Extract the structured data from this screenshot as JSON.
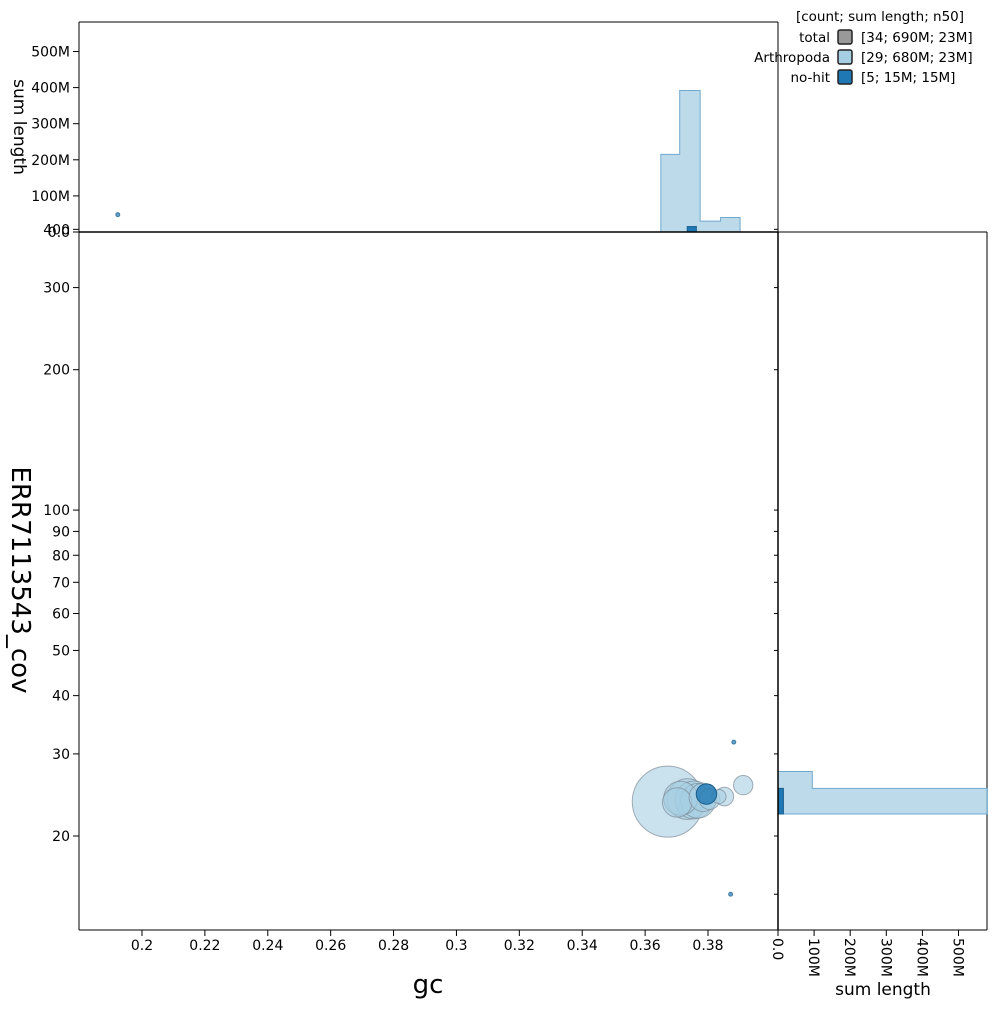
{
  "colors": {
    "total": "#999999",
    "arthropoda": "#a6cee3",
    "arthropoda_stroke": "#6fa8cc",
    "nohit": "#1f78b4",
    "nohit_stroke": "#1a5e8a"
  },
  "chart_data": {
    "type": "scatter",
    "title": "",
    "xlabel": "gc",
    "ylabel": "ERR7113543_cov",
    "x_ticks": [
      "0.2",
      "0.22",
      "0.24",
      "0.26",
      "0.28",
      "0.3",
      "0.32",
      "0.34",
      "0.36",
      "0.38"
    ],
    "y_ticks": [
      "20",
      "30",
      "40",
      "50",
      "60",
      "70",
      "80",
      "90",
      "100",
      "200",
      "300",
      "400"
    ],
    "y_scale": "log",
    "xlim": [
      0.18,
      0.402
    ],
    "ylim": [
      14,
      480
    ],
    "top_hist": {
      "ylabel": "sum length",
      "y_ticks": [
        "0.0",
        "100M",
        "200M",
        "300M",
        "400M",
        "500M"
      ],
      "ylim_M": [
        0,
        560
      ]
    },
    "right_hist": {
      "xlabel": "sum length",
      "x_ticks": [
        "0.0",
        "100M",
        "200M",
        "300M",
        "400M",
        "500M"
      ],
      "xlim_M": [
        0,
        560
      ]
    },
    "legend": {
      "header": "[count; sum length; n50]",
      "placement": "top-right",
      "entries": [
        {
          "key": "total",
          "label": "total",
          "stats": "[34; 690M; 23M]"
        },
        {
          "key": "arthropoda",
          "label": "Arthropoda",
          "stats": "[29; 680M; 23M]"
        },
        {
          "key": "nohit",
          "label": "no-hit",
          "stats": "[5; 15M; 15M]"
        }
      ]
    },
    "series": [
      {
        "name": "Arthropoda",
        "key": "arthropoda",
        "points": [
          {
            "gc": 0.3672,
            "cov": 23.7,
            "len_M": 175
          },
          {
            "gc": 0.3713,
            "cov": 24.1,
            "len_M": 40
          },
          {
            "gc": 0.3735,
            "cov": 24.0,
            "len_M": 58
          },
          {
            "gc": 0.3755,
            "cov": 23.9,
            "len_M": 50
          },
          {
            "gc": 0.3702,
            "cov": 23.6,
            "len_M": 30
          },
          {
            "gc": 0.3768,
            "cov": 23.8,
            "len_M": 42
          },
          {
            "gc": 0.3785,
            "cov": 24.2,
            "len_M": 28
          },
          {
            "gc": 0.3805,
            "cov": 24.0,
            "len_M": 15
          },
          {
            "gc": 0.3852,
            "cov": 24.3,
            "len_M": 12
          },
          {
            "gc": 0.3835,
            "cov": 24.3,
            "len_M": 7
          },
          {
            "gc": 0.3912,
            "cov": 25.7,
            "len_M": 13
          },
          {
            "gc": 0.3882,
            "cov": 31.8,
            "len_M": 0.05
          },
          {
            "gc": 0.3872,
            "cov": 15.0,
            "len_M": 0.05
          },
          {
            "gc": 0.1923,
            "cov": 430,
            "len_M": 0.05
          }
        ]
      },
      {
        "name": "no-hit",
        "key": "nohit",
        "points": [
          {
            "gc": 0.3795,
            "cov": 24.6,
            "len_M": 14.5
          }
        ]
      }
    ],
    "top_hist_bins": {
      "bin_edges": [
        0.365,
        0.371,
        0.3775,
        0.384,
        0.3902
      ],
      "arthropoda_M": [
        215,
        392,
        30,
        40
      ],
      "nohit_M": [
        0,
        15,
        0,
        0
      ]
    },
    "right_hist_bins": {
      "cov_edges": [
        22.3,
        25.3,
        27.5
      ],
      "arthropoda_M": [
        580,
        95
      ],
      "nohit_M": [
        15,
        0
      ]
    }
  }
}
